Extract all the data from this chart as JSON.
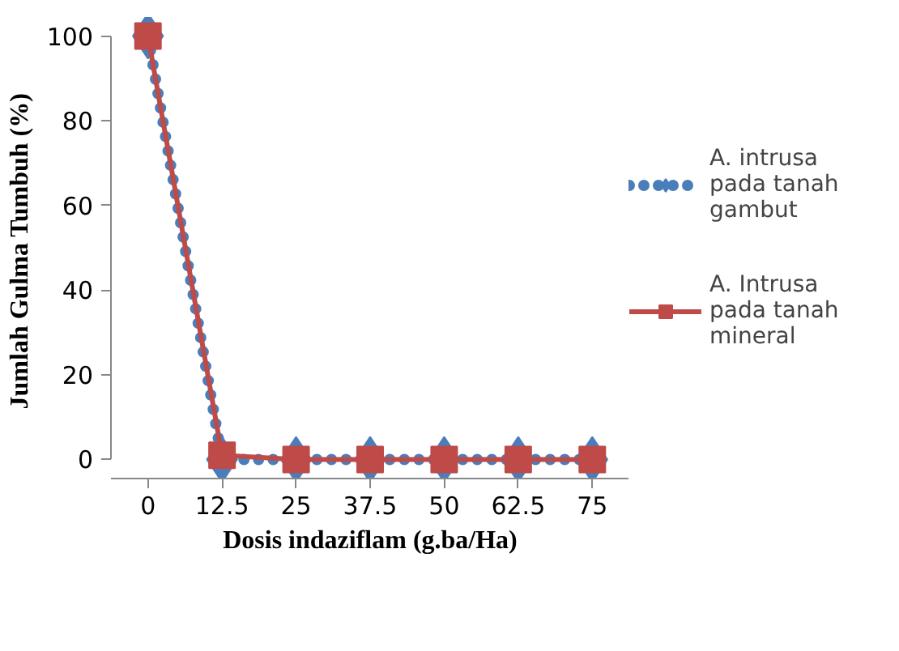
{
  "chart_data": {
    "type": "line",
    "xlabel": "Dosis indaziflam (g.ba/Ha)",
    "ylabel": "Jumlah Gulma  Tumbuh (%)",
    "categories": [
      "0",
      "12.5",
      "25",
      "37.5",
      "50",
      "62.5",
      "75"
    ],
    "series": [
      {
        "name": "A. intrusa pada tanah gambut",
        "color": "#4a7ebb",
        "values": [
          100,
          0,
          0,
          0,
          0,
          0,
          0
        ],
        "marker": "diamond",
        "line_style": "dotted"
      },
      {
        "name": "A. Intrusa pada tanah mineral",
        "color": "#be4b48",
        "values": [
          100,
          1,
          0,
          0,
          0,
          0,
          0
        ],
        "marker": "square",
        "line_style": "solid"
      }
    ],
    "ylim": [
      0,
      100
    ],
    "yticks": [
      0,
      20,
      40,
      60,
      80,
      100
    ],
    "grid": false,
    "legend": "right"
  }
}
